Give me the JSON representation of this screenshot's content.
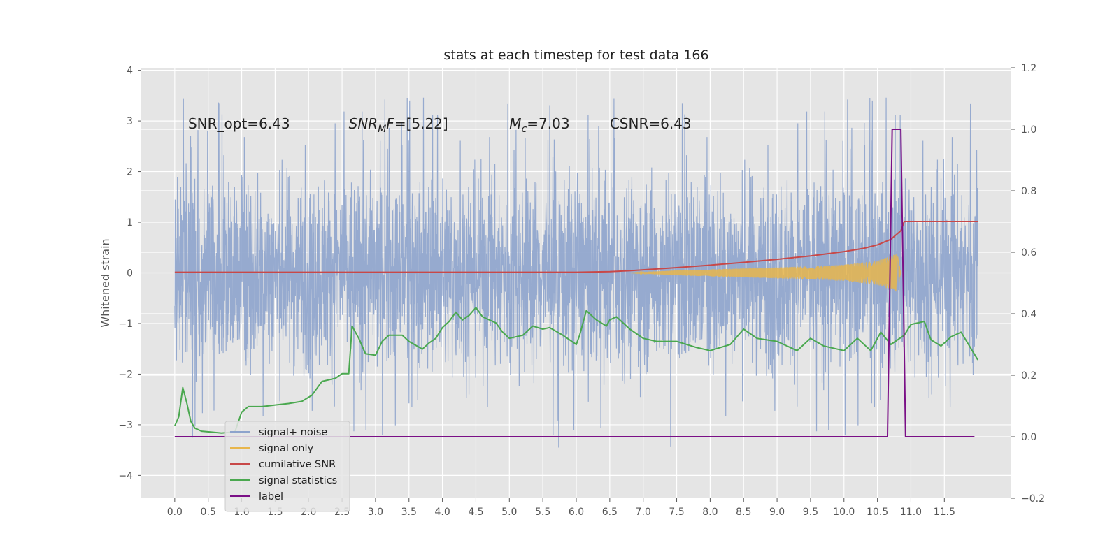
{
  "chart_data": {
    "type": "line",
    "title": "stats at each timestep for test data 166",
    "ylabel": "Whitened strain",
    "ylabel_right": "",
    "xlim": [
      -0.5,
      12.5
    ],
    "ylim": [
      -4.45,
      4.05
    ],
    "ylim_right": [
      -0.2,
      1.2
    ],
    "x_ticks": [
      0.0,
      0.5,
      1.0,
      1.5,
      2.0,
      2.5,
      3.0,
      3.5,
      4.0,
      4.5,
      5.0,
      5.5,
      6.0,
      6.5,
      7.0,
      7.5,
      8.0,
      8.5,
      9.0,
      9.5,
      10.0,
      10.5,
      11.0,
      11.5
    ],
    "x_tick_labels": [
      "0.0",
      "0.5",
      "1.0",
      "1.5",
      "2.0",
      "2.5",
      "3.0",
      "3.5",
      "4.0",
      "4.5",
      "5.0",
      "5.5",
      "6.0",
      "6.5",
      "7.0",
      "7.5",
      "8.0",
      "8.5",
      "9.0",
      "9.5",
      "10.0",
      "10.5",
      "11.0",
      "11.5"
    ],
    "y_ticks": [
      -4,
      -3,
      -2,
      -1,
      0,
      1,
      2,
      3,
      4
    ],
    "y_tick_labels": [
      "−4",
      "−3",
      "−2",
      "−1",
      "0",
      "1",
      "2",
      "3",
      "4"
    ],
    "y_ticks_right": [
      -0.2,
      0.0,
      0.2,
      0.4,
      0.6,
      0.8,
      1.0,
      1.2
    ],
    "y_tick_labels_right": [
      "−0.2",
      "0.0",
      "0.2",
      "0.4",
      "0.6",
      "0.8",
      "1.0",
      "1.2"
    ],
    "grid": true,
    "legend_position": "lower-left",
    "annotations": [
      {
        "x": 0.2,
        "y": 2.85,
        "text": "SNR_opt=6.43"
      },
      {
        "x": 2.6,
        "y": 2.85,
        "text": "SNR_MF=[5.22]",
        "display": "SNRMF=[5.22]"
      },
      {
        "x": 5.0,
        "y": 2.85,
        "text": "M_c=7.03",
        "display": "Mc=7.03"
      },
      {
        "x": 6.5,
        "y": 2.85,
        "text": "CSNR=6.43"
      }
    ],
    "series": [
      {
        "name": "signal+ noise",
        "color": "#8da3cc",
        "axis": "left",
        "kind": "noise",
        "x_range": [
          0.0,
          12.0
        ],
        "typical_amplitude": 1.6,
        "max_peak": 3.7,
        "min_peak": -3.7
      },
      {
        "name": "signal only",
        "color": "#e8b64c",
        "axis": "left",
        "kind": "chirp",
        "x_range": [
          0.0,
          12.0
        ],
        "envelope": [
          [
            6.8,
            0.0
          ],
          [
            7.5,
            0.05
          ],
          [
            8.5,
            0.09
          ],
          [
            9.5,
            0.13
          ],
          [
            10.0,
            0.16
          ],
          [
            10.5,
            0.24
          ],
          [
            10.8,
            0.38
          ],
          [
            10.85,
            0.0
          ]
        ]
      },
      {
        "name": "cumilative SNR",
        "color": "#c84848",
        "axis": "right",
        "points": [
          [
            0.0,
            0.535
          ],
          [
            6.0,
            0.535
          ],
          [
            6.5,
            0.537
          ],
          [
            6.8,
            0.54
          ],
          [
            7.5,
            0.55
          ],
          [
            8.0,
            0.558
          ],
          [
            8.5,
            0.567
          ],
          [
            9.0,
            0.577
          ],
          [
            9.5,
            0.588
          ],
          [
            10.0,
            0.602
          ],
          [
            10.3,
            0.613
          ],
          [
            10.5,
            0.624
          ],
          [
            10.7,
            0.642
          ],
          [
            10.85,
            0.67
          ],
          [
            10.9,
            0.7
          ],
          [
            12.0,
            0.7
          ]
        ]
      },
      {
        "name": "signal statistics",
        "color": "#4aa84f",
        "axis": "right",
        "points": [
          [
            0.0,
            0.035
          ],
          [
            0.06,
            0.065
          ],
          [
            0.12,
            0.16
          ],
          [
            0.18,
            0.11
          ],
          [
            0.24,
            0.05
          ],
          [
            0.3,
            0.028
          ],
          [
            0.4,
            0.018
          ],
          [
            0.55,
            0.015
          ],
          [
            0.7,
            0.012
          ],
          [
            0.9,
            0.016
          ],
          [
            1.0,
            0.08
          ],
          [
            1.1,
            0.098
          ],
          [
            1.3,
            0.098
          ],
          [
            1.5,
            0.103
          ],
          [
            1.7,
            0.108
          ],
          [
            1.9,
            0.115
          ],
          [
            2.05,
            0.135
          ],
          [
            2.2,
            0.18
          ],
          [
            2.4,
            0.19
          ],
          [
            2.5,
            0.205
          ],
          [
            2.6,
            0.205
          ],
          [
            2.65,
            0.36
          ],
          [
            2.75,
            0.32
          ],
          [
            2.85,
            0.27
          ],
          [
            3.0,
            0.265
          ],
          [
            3.1,
            0.31
          ],
          [
            3.2,
            0.33
          ],
          [
            3.4,
            0.33
          ],
          [
            3.5,
            0.31
          ],
          [
            3.7,
            0.285
          ],
          [
            3.8,
            0.305
          ],
          [
            3.9,
            0.32
          ],
          [
            4.0,
            0.355
          ],
          [
            4.1,
            0.375
          ],
          [
            4.2,
            0.405
          ],
          [
            4.3,
            0.38
          ],
          [
            4.4,
            0.395
          ],
          [
            4.5,
            0.42
          ],
          [
            4.6,
            0.39
          ],
          [
            4.8,
            0.37
          ],
          [
            4.9,
            0.34
          ],
          [
            5.0,
            0.32
          ],
          [
            5.2,
            0.33
          ],
          [
            5.35,
            0.36
          ],
          [
            5.5,
            0.35
          ],
          [
            5.6,
            0.355
          ],
          [
            5.8,
            0.33
          ],
          [
            6.0,
            0.3
          ],
          [
            6.05,
            0.33
          ],
          [
            6.15,
            0.41
          ],
          [
            6.3,
            0.38
          ],
          [
            6.45,
            0.36
          ],
          [
            6.5,
            0.38
          ],
          [
            6.6,
            0.39
          ],
          [
            6.8,
            0.35
          ],
          [
            7.0,
            0.32
          ],
          [
            7.2,
            0.31
          ],
          [
            7.5,
            0.31
          ],
          [
            7.8,
            0.29
          ],
          [
            8.0,
            0.28
          ],
          [
            8.3,
            0.3
          ],
          [
            8.5,
            0.35
          ],
          [
            8.7,
            0.32
          ],
          [
            9.0,
            0.31
          ],
          [
            9.3,
            0.28
          ],
          [
            9.5,
            0.32
          ],
          [
            9.7,
            0.295
          ],
          [
            10.0,
            0.28
          ],
          [
            10.2,
            0.32
          ],
          [
            10.4,
            0.28
          ],
          [
            10.55,
            0.34
          ],
          [
            10.7,
            0.3
          ],
          [
            10.9,
            0.33
          ],
          [
            11.0,
            0.365
          ],
          [
            11.2,
            0.375
          ],
          [
            11.3,
            0.315
          ],
          [
            11.45,
            0.295
          ],
          [
            11.6,
            0.325
          ],
          [
            11.75,
            0.34
          ],
          [
            12.0,
            0.25
          ]
        ]
      },
      {
        "name": "label",
        "color": "#7a0f86",
        "axis": "right",
        "points": [
          [
            0.0,
            0.0
          ],
          [
            10.65,
            0.0
          ],
          [
            10.72,
            1.0
          ],
          [
            10.85,
            1.0
          ],
          [
            10.92,
            0.0
          ],
          [
            11.95,
            0.0
          ]
        ]
      }
    ]
  }
}
